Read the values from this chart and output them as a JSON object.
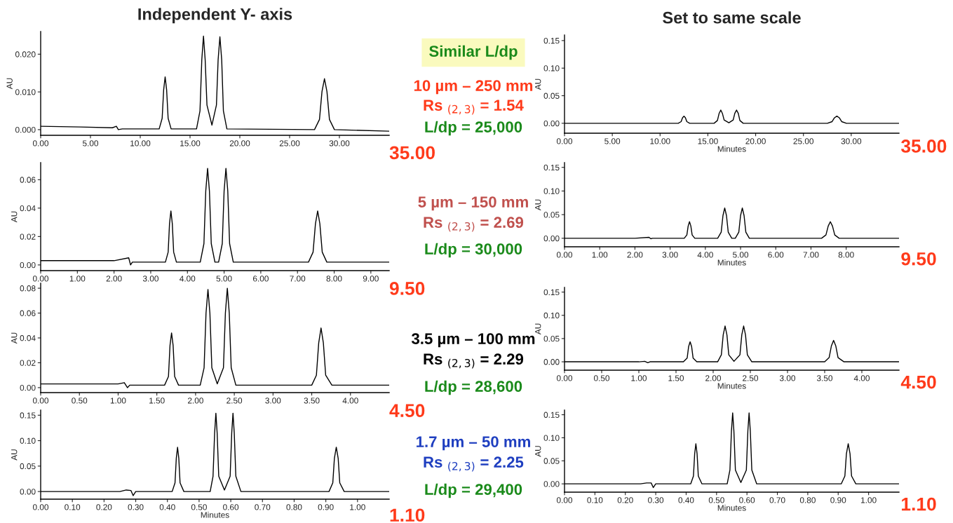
{
  "chart_data": [
    {
      "type": "line",
      "title": "Independent Y- axis",
      "ylabel": "AU",
      "xlim": [
        0,
        35
      ],
      "ylim": [
        -0.0015,
        0.026
      ],
      "xticks": [
        {
          "value": 0,
          "label": "0.00"
        },
        {
          "value": 5,
          "label": "5.00"
        },
        {
          "value": 10,
          "label": "10.00"
        },
        {
          "value": 15,
          "label": "15.00"
        },
        {
          "value": 20,
          "label": "20.00"
        },
        {
          "value": 25,
          "label": "25.00"
        },
        {
          "value": 30,
          "label": "30.00"
        }
      ],
      "yticks": [
        {
          "value": 0,
          "label": "0.000"
        },
        {
          "value": 0.01,
          "label": "0.010"
        },
        {
          "value": 0.02,
          "label": "0.020"
        }
      ],
      "annotations": [
        "35.00"
      ],
      "series": [
        {
          "color": "#000000",
          "x": [
            0,
            4,
            7.2,
            7.6,
            7.8,
            8.2,
            11.9,
            12.2,
            12.35,
            12.5,
            12.65,
            12.8,
            13.1,
            15.65,
            16.0,
            16.18,
            16.35,
            16.52,
            16.7,
            17.2,
            17.65,
            17.82,
            18.0,
            18.18,
            18.35,
            18.7,
            27.5,
            28.0,
            28.25,
            28.5,
            28.75,
            29.0,
            29.5,
            35
          ],
          "values": [
            0.0009,
            0.0007,
            0.0005,
            0.0009,
            0.0,
            0.0002,
            0.0002,
            0.003,
            0.0105,
            0.014,
            0.0105,
            0.003,
            0.0002,
            0.0002,
            0.005,
            0.0185,
            0.0248,
            0.0185,
            0.0065,
            0.0012,
            0.0065,
            0.0185,
            0.0246,
            0.0185,
            0.005,
            0.0002,
            0.0,
            0.0027,
            0.0101,
            0.0135,
            0.0101,
            0.0027,
            0.0,
            -0.0004
          ]
        }
      ]
    },
    {
      "type": "other",
      "title": "Similar L/dp",
      "annotations": [
        "10 µm – 250 mm",
        "Rs $_{(2,3)}$ = 1.54",
        "L/dp = 25,000",
        "5 µm – 150 mm",
        "Rs $_{(2,3)}$ = 2.69",
        "L/dp = 30,000",
        "3.5 µm – 100 mm",
        "Rs $_{(2,3)}$ = 2.29",
        "L/dp = 28,600",
        "1.7 µm – 50 mm",
        "Rs $_{(2,3)}$ = 2.25",
        "L/dp = 29,400"
      ]
    },
    {
      "type": "line",
      "title": "Set to same scale",
      "xlabel": "Minutes",
      "ylabel": "AU",
      "xlim": [
        0,
        35
      ],
      "ylim": [
        -0.018,
        0.16
      ],
      "xticks": [
        {
          "value": 0,
          "label": "0.00"
        },
        {
          "value": 5,
          "label": "5.00"
        },
        {
          "value": 10,
          "label": "10.00"
        },
        {
          "value": 15,
          "label": "15.00"
        },
        {
          "value": 20,
          "label": "20.00"
        },
        {
          "value": 25,
          "label": "25.00"
        },
        {
          "value": 30,
          "label": "30.00"
        }
      ],
      "yticks": [
        {
          "value": 0,
          "label": "0.00"
        },
        {
          "value": 0.05,
          "label": "0.05"
        },
        {
          "value": 0.1,
          "label": "0.10"
        },
        {
          "value": 0.15,
          "label": "0.15"
        }
      ],
      "annotations": [
        "35.00"
      ],
      "series": [
        {
          "color": "#000000",
          "x": [
            0,
            7.6,
            8.2,
            11.9,
            12.2,
            12.35,
            12.5,
            12.65,
            12.8,
            13.1,
            15.65,
            16.0,
            16.18,
            16.35,
            16.52,
            16.7,
            17.2,
            17.65,
            17.82,
            18.0,
            18.18,
            18.35,
            18.7,
            27.5,
            28.0,
            28.25,
            28.5,
            28.75,
            29.0,
            29.5,
            35
          ],
          "values": [
            0.0,
            0.0,
            0.0,
            0.0,
            0.003,
            0.01,
            0.013,
            0.01,
            0.003,
            0.0,
            0.0,
            0.005,
            0.018,
            0.024,
            0.018,
            0.006,
            0.001,
            0.006,
            0.018,
            0.024,
            0.018,
            0.005,
            0.0,
            0.0,
            0.003,
            0.01,
            0.013,
            0.01,
            0.003,
            0.0,
            0.0
          ]
        }
      ]
    },
    {
      "type": "line",
      "ylabel": "AU",
      "xlim": [
        0,
        9.5
      ],
      "ylim": [
        -0.004,
        0.072
      ],
      "xticks": [
        {
          "value": 0,
          "label": "0.00"
        },
        {
          "value": 1,
          "label": "1.00"
        },
        {
          "value": 2,
          "label": "2.00"
        },
        {
          "value": 3,
          "label": "3.00"
        },
        {
          "value": 4,
          "label": "4.00"
        },
        {
          "value": 5,
          "label": "5.00"
        },
        {
          "value": 6,
          "label": "6.00"
        },
        {
          "value": 7,
          "label": "7.00"
        },
        {
          "value": 8,
          "label": "8.00"
        },
        {
          "value": 9,
          "label": "9.00"
        }
      ],
      "yticks": [
        {
          "value": 0,
          "label": "0.00"
        },
        {
          "value": 0.02,
          "label": "0.02"
        },
        {
          "value": 0.04,
          "label": "0.04"
        },
        {
          "value": 0.06,
          "label": "0.06"
        }
      ],
      "annotations": [
        "9.50"
      ],
      "series": [
        {
          "color": "#000000",
          "x": [
            0,
            2.0,
            2.4,
            2.45,
            2.5,
            3.4,
            3.475,
            3.512,
            3.55,
            3.588,
            3.625,
            3.7,
            4.35,
            4.45,
            4.5,
            4.55,
            4.6,
            4.65,
            4.75,
            4.85,
            4.95,
            5.0,
            5.05,
            5.1,
            5.15,
            5.25,
            7.3,
            7.425,
            7.49,
            7.55,
            7.61,
            7.675,
            7.8,
            9.5
          ],
          "values": [
            0.003,
            0.003,
            0.005,
            0.0,
            0.002,
            0.002,
            0.009,
            0.029,
            0.038,
            0.029,
            0.009,
            0.002,
            0.002,
            0.015,
            0.052,
            0.068,
            0.052,
            0.015,
            0.002,
            0.002,
            0.015,
            0.052,
            0.068,
            0.052,
            0.015,
            0.002,
            0.002,
            0.009,
            0.029,
            0.038,
            0.029,
            0.009,
            0.002,
            0.002
          ]
        }
      ]
    },
    {
      "type": "line",
      "xlabel": "Minutes",
      "ylabel": "AU",
      "xlim": [
        0,
        9.5
      ],
      "ylim": [
        -0.018,
        0.16
      ],
      "xticks": [
        {
          "value": 0,
          "label": "0.00"
        },
        {
          "value": 1,
          "label": "1.00"
        },
        {
          "value": 2,
          "label": "2.00"
        },
        {
          "value": 3,
          "label": "3.00"
        },
        {
          "value": 4,
          "label": "4.00"
        },
        {
          "value": 5,
          "label": "5.00"
        },
        {
          "value": 6,
          "label": "6.00"
        },
        {
          "value": 7,
          "label": "7.00"
        },
        {
          "value": 8,
          "label": "8.00"
        }
      ],
      "yticks": [
        {
          "value": 0,
          "label": "0.00"
        },
        {
          "value": 0.05,
          "label": "0.05"
        },
        {
          "value": 0.1,
          "label": "0.10"
        },
        {
          "value": 0.15,
          "label": "0.15"
        }
      ],
      "annotations": [
        "9.50"
      ],
      "series": [
        {
          "color": "#000000",
          "x": [
            0,
            2.0,
            2.4,
            2.45,
            2.5,
            3.4,
            3.475,
            3.512,
            3.55,
            3.588,
            3.625,
            3.7,
            4.35,
            4.45,
            4.5,
            4.55,
            4.6,
            4.65,
            4.75,
            4.85,
            4.95,
            5.0,
            5.05,
            5.1,
            5.15,
            5.25,
            7.3,
            7.425,
            7.49,
            7.55,
            7.61,
            7.675,
            7.8,
            9.5
          ],
          "values": [
            0.0,
            0.0,
            0.002,
            -0.001,
            0.0,
            0.0,
            0.007,
            0.026,
            0.035,
            0.026,
            0.007,
            0.0,
            0.0,
            0.013,
            0.048,
            0.064,
            0.048,
            0.013,
            0.0,
            0.0,
            0.013,
            0.048,
            0.064,
            0.048,
            0.013,
            0.0,
            0.0,
            0.007,
            0.026,
            0.035,
            0.026,
            0.007,
            0.0,
            0.0
          ]
        }
      ]
    },
    {
      "type": "line",
      "ylabel": "AU",
      "xlim": [
        0,
        4.5
      ],
      "ylim": [
        -0.004,
        0.084
      ],
      "xticks": [
        {
          "value": 0,
          "label": "0.00"
        },
        {
          "value": 0.5,
          "label": "0.50"
        },
        {
          "value": 1,
          "label": "1.00"
        },
        {
          "value": 1.5,
          "label": "1.50"
        },
        {
          "value": 2,
          "label": "2.00"
        },
        {
          "value": 2.5,
          "label": "2.50"
        },
        {
          "value": 3,
          "label": "3.00"
        },
        {
          "value": 3.5,
          "label": "3.50"
        },
        {
          "value": 4,
          "label": "4.00"
        }
      ],
      "yticks": [
        {
          "value": 0,
          "label": "0.00"
        },
        {
          "value": 0.02,
          "label": "0.02"
        },
        {
          "value": 0.04,
          "label": "0.04"
        },
        {
          "value": 0.06,
          "label": "0.06"
        },
        {
          "value": 0.08,
          "label": "0.08"
        }
      ],
      "annotations": [
        "4.50"
      ],
      "series": [
        {
          "color": "#000000",
          "x": [
            0,
            1.0,
            1.08,
            1.12,
            1.15,
            1.6,
            1.65,
            1.67,
            1.69,
            1.71,
            1.73,
            1.78,
            2.06,
            2.11,
            2.135,
            2.16,
            2.185,
            2.21,
            2.28,
            2.36,
            2.385,
            2.41,
            2.435,
            2.46,
            2.52,
            3.5,
            3.56,
            3.59,
            3.62,
            3.65,
            3.68,
            3.76,
            4.5
          ],
          "values": [
            0.003,
            0.003,
            0.004,
            0.0,
            0.002,
            0.002,
            0.009,
            0.034,
            0.044,
            0.034,
            0.009,
            0.002,
            0.002,
            0.016,
            0.06,
            0.079,
            0.06,
            0.016,
            0.003,
            0.016,
            0.06,
            0.08,
            0.06,
            0.016,
            0.002,
            0.002,
            0.01,
            0.036,
            0.048,
            0.036,
            0.01,
            0.002,
            0.002
          ]
        }
      ]
    },
    {
      "type": "line",
      "xlabel": "Minutes",
      "ylabel": "AU",
      "xlim": [
        0,
        4.5
      ],
      "ylim": [
        -0.018,
        0.16
      ],
      "xticks": [
        {
          "value": 0,
          "label": "0.00"
        },
        {
          "value": 0.5,
          "label": "0.50"
        },
        {
          "value": 1,
          "label": "1.00"
        },
        {
          "value": 1.5,
          "label": "1.50"
        },
        {
          "value": 2,
          "label": "2.00"
        },
        {
          "value": 2.5,
          "label": "2.50"
        },
        {
          "value": 3,
          "label": "3.00"
        },
        {
          "value": 3.5,
          "label": "3.50"
        },
        {
          "value": 4,
          "label": "4.00"
        }
      ],
      "yticks": [
        {
          "value": 0,
          "label": "0.00"
        },
        {
          "value": 0.05,
          "label": "0.05"
        },
        {
          "value": 0.1,
          "label": "0.10"
        },
        {
          "value": 0.15,
          "label": "0.15"
        }
      ],
      "annotations": [
        "4.50"
      ],
      "series": [
        {
          "color": "#000000",
          "x": [
            0,
            1.0,
            1.08,
            1.12,
            1.15,
            1.6,
            1.65,
            1.67,
            1.69,
            1.71,
            1.73,
            1.78,
            2.06,
            2.11,
            2.135,
            2.16,
            2.185,
            2.21,
            2.28,
            2.36,
            2.385,
            2.41,
            2.435,
            2.46,
            2.52,
            3.5,
            3.56,
            3.59,
            3.62,
            3.65,
            3.68,
            3.76,
            4.5
          ],
          "values": [
            0.0,
            0.0,
            0.001,
            -0.002,
            0.0,
            0.0,
            0.008,
            0.033,
            0.043,
            0.033,
            0.008,
            0.0,
            0.0,
            0.015,
            0.058,
            0.077,
            0.058,
            0.015,
            0.001,
            0.015,
            0.058,
            0.077,
            0.058,
            0.015,
            0.0,
            0.0,
            0.009,
            0.034,
            0.046,
            0.034,
            0.009,
            0.0,
            0.0
          ]
        }
      ]
    },
    {
      "type": "line",
      "xlabel": "Minutes",
      "ylabel": "AU",
      "xlim": [
        0,
        1.1
      ],
      "ylim": [
        -0.015,
        0.16
      ],
      "xticks": [
        {
          "value": 0,
          "label": "0.00"
        },
        {
          "value": 0.1,
          "label": "0.10"
        },
        {
          "value": 0.2,
          "label": "0.20"
        },
        {
          "value": 0.3,
          "label": "0.30"
        },
        {
          "value": 0.4,
          "label": "0.40"
        },
        {
          "value": 0.5,
          "label": "0.50"
        },
        {
          "value": 0.6,
          "label": "0.60"
        },
        {
          "value": 0.7,
          "label": "0.70"
        },
        {
          "value": 0.8,
          "label": "0.80"
        },
        {
          "value": 0.9,
          "label": "0.90"
        },
        {
          "value": 1.0,
          "label": "1.00"
        }
      ],
      "yticks": [
        {
          "value": 0,
          "label": "0.00"
        },
        {
          "value": 0.05,
          "label": "0.05"
        },
        {
          "value": 0.1,
          "label": "0.10"
        },
        {
          "value": 0.15,
          "label": "0.15"
        }
      ],
      "annotations": [
        "1.10"
      ],
      "series": [
        {
          "color": "#000000",
          "x": [
            0,
            0.25,
            0.27,
            0.285,
            0.292,
            0.3,
            0.415,
            0.424,
            0.428,
            0.432,
            0.436,
            0.44,
            0.452,
            0.535,
            0.544,
            0.549,
            0.553,
            0.557,
            0.562,
            0.58,
            0.598,
            0.603,
            0.607,
            0.611,
            0.616,
            0.632,
            0.91,
            0.922,
            0.927,
            0.933,
            0.939,
            0.944,
            0.958,
            1.1
          ],
          "values": [
            0.0,
            0.0,
            0.003,
            0.002,
            -0.008,
            0.0,
            0.0,
            0.017,
            0.065,
            0.087,
            0.065,
            0.017,
            0.0,
            0.0,
            0.03,
            0.115,
            0.154,
            0.115,
            0.03,
            0.003,
            0.03,
            0.115,
            0.154,
            0.115,
            0.03,
            0.0,
            0.0,
            0.017,
            0.065,
            0.087,
            0.065,
            0.017,
            0.0,
            0.0
          ]
        }
      ]
    },
    {
      "type": "line",
      "xlabel": "Minutes",
      "ylabel": "AU",
      "xlim": [
        0,
        1.1
      ],
      "ylim": [
        -0.018,
        0.16
      ],
      "xticks": [
        {
          "value": 0,
          "label": "0.00"
        },
        {
          "value": 0.1,
          "label": "0.10"
        },
        {
          "value": 0.2,
          "label": "0.20"
        },
        {
          "value": 0.3,
          "label": "0.30"
        },
        {
          "value": 0.4,
          "label": "0.40"
        },
        {
          "value": 0.5,
          "label": "0.50"
        },
        {
          "value": 0.6,
          "label": "0.60"
        },
        {
          "value": 0.7,
          "label": "0.70"
        },
        {
          "value": 0.8,
          "label": "0.80"
        },
        {
          "value": 0.9,
          "label": "0.90"
        },
        {
          "value": 1.0,
          "label": "1.00"
        }
      ],
      "yticks": [
        {
          "value": 0,
          "label": "0.00"
        },
        {
          "value": 0.05,
          "label": "0.05"
        },
        {
          "value": 0.1,
          "label": "0.10"
        },
        {
          "value": 0.15,
          "label": "0.15"
        }
      ],
      "annotations": [
        "1.10"
      ],
      "series": [
        {
          "color": "#000000",
          "x": [
            0,
            0.25,
            0.27,
            0.285,
            0.292,
            0.3,
            0.415,
            0.424,
            0.428,
            0.432,
            0.436,
            0.44,
            0.452,
            0.535,
            0.544,
            0.549,
            0.553,
            0.557,
            0.562,
            0.58,
            0.598,
            0.603,
            0.607,
            0.611,
            0.616,
            0.632,
            0.91,
            0.922,
            0.927,
            0.933,
            0.939,
            0.944,
            0.958,
            1.1
          ],
          "values": [
            0.0,
            0.0,
            0.002,
            0.002,
            -0.008,
            0.0,
            0.0,
            0.017,
            0.065,
            0.087,
            0.065,
            0.017,
            0.0,
            0.0,
            0.03,
            0.115,
            0.154,
            0.115,
            0.03,
            0.003,
            0.03,
            0.115,
            0.154,
            0.115,
            0.03,
            0.0,
            0.0,
            0.017,
            0.065,
            0.087,
            0.065,
            0.017,
            0.0,
            0.0
          ]
        }
      ]
    }
  ]
}
